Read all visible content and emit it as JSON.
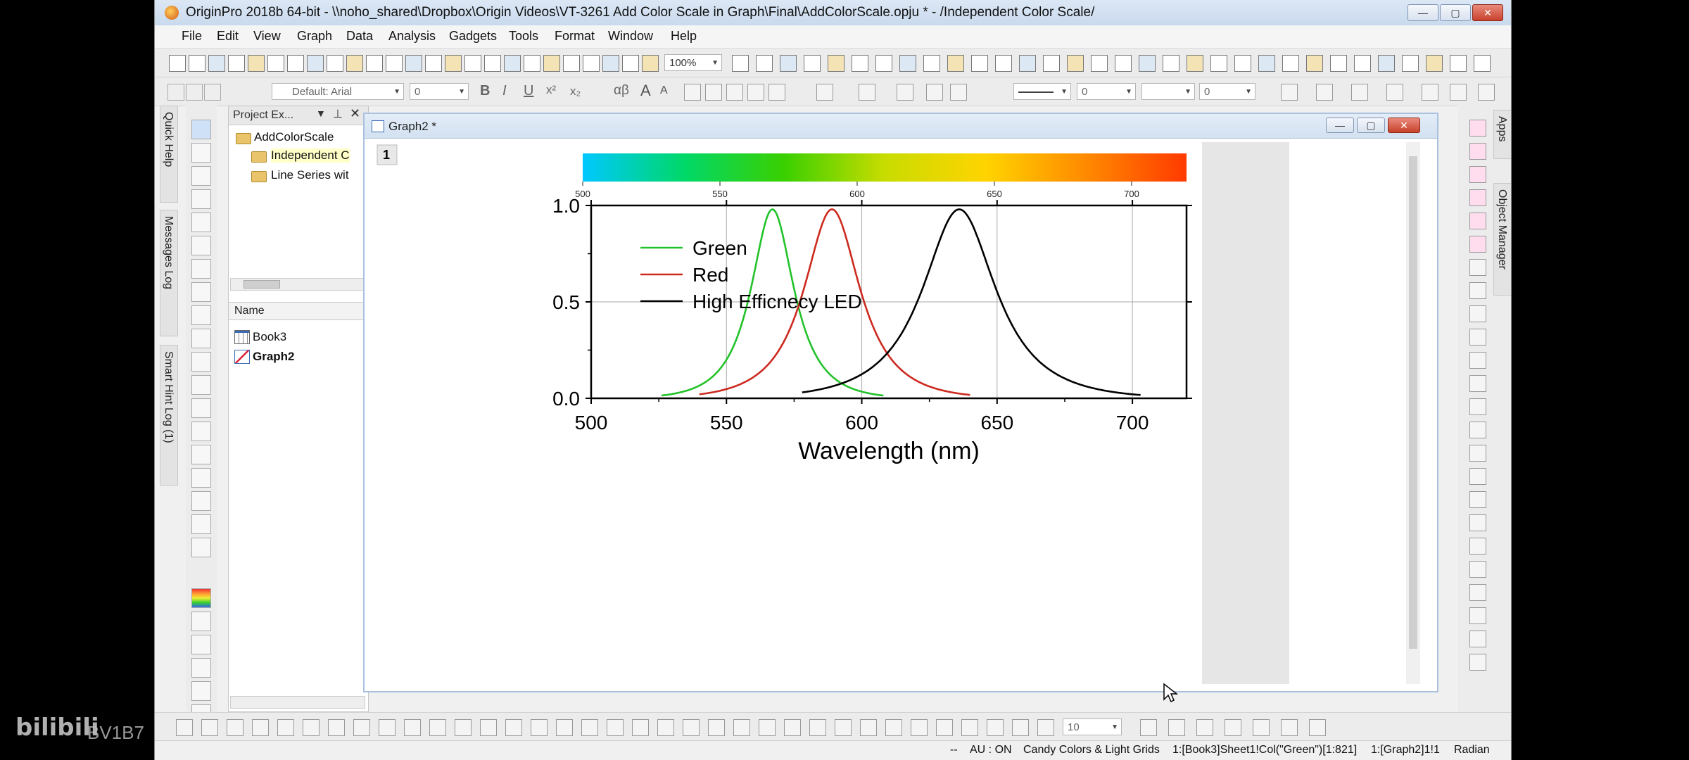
{
  "window": {
    "title": "OriginPro 2018b 64-bit - \\\\noho_shared\\Dropbox\\Origin Videos\\VT-3261 Add Color Scale in Graph\\Final\\AddColorScale.opju * - /Independent Color Scale/",
    "minimize_icon": "minimize-icon",
    "maximize_icon": "maximize-icon",
    "close_icon": "close-icon"
  },
  "menu": [
    "File",
    "Edit",
    "View",
    "Graph",
    "Data",
    "Analysis",
    "Gadgets",
    "Tools",
    "Format",
    "Window",
    "Help"
  ],
  "toolbar": {
    "zoom": "100%",
    "font": "Default: Arial",
    "font_size": "0",
    "line_width": "0",
    "line_width2": "0",
    "bold": "B",
    "italic": "I",
    "underline": "U",
    "superscript": "x²",
    "subscript": "x₂",
    "greek": "αβ",
    "font_grow": "A",
    "font_shrink": "A",
    "bottom_font_size": "10"
  },
  "left_dock": {
    "tabs": [
      "Quick Help",
      "Messages Log",
      "Smart Hint Log (1)"
    ]
  },
  "project_explorer": {
    "title": "Project Ex...",
    "root": "AddColorScale",
    "folders": [
      "Independent C",
      "Line Series wit"
    ],
    "column_header": "Name",
    "items": [
      {
        "name": "Book3",
        "bold": false,
        "icon": "workbook-icon"
      },
      {
        "name": "Graph2",
        "bold": true,
        "icon": "graph-icon"
      }
    ]
  },
  "graph_window": {
    "title": "Graph2 *",
    "layer_label": "1"
  },
  "right_dock": {
    "tabs": [
      "Apps",
      "Object Manager"
    ]
  },
  "status_bar": {
    "separator": "--",
    "au": "AU : ON",
    "theme": "Candy Colors & Light Grids",
    "column": "1:[Book3]Sheet1!Col(\"Green\")[1:821]",
    "layer": "1:[Graph2]1!1",
    "unit": "Radian"
  },
  "watermark": {
    "logo": "bilibili",
    "id": "BV1B7"
  },
  "chart_data": {
    "type": "line",
    "xlabel": "Wavelength (nm)",
    "ylabel": "",
    "xlim": [
      500,
      720
    ],
    "ylim": [
      0,
      1
    ],
    "x_ticks": [
      "500",
      "550",
      "600",
      "650",
      "700"
    ],
    "y_ticks": [
      "0.0",
      "0.5",
      "1.0"
    ],
    "grid": true,
    "legend_position": "top-left",
    "series": [
      {
        "name": "Green",
        "color": "#22c22a",
        "x_range": [
          526,
          608
        ],
        "peak_x": 567,
        "peak_y": 0.98,
        "width": 10
      },
      {
        "name": "Red",
        "color": "#cc2a1e",
        "x_range": [
          540,
          640
        ],
        "peak_x": 589,
        "peak_y": 0.98,
        "width": 13
      },
      {
        "name": "High Efficnecy LED",
        "color": "#000000",
        "x_range": [
          578,
          703
        ],
        "peak_x": 636,
        "peak_y": 0.98,
        "width": 17
      }
    ],
    "color_scale": {
      "range": [
        500,
        720
      ],
      "ticks": [
        "500",
        "550",
        "600",
        "650",
        "700"
      ],
      "stops": [
        "#00c8ff",
        "#00d86a",
        "#3ad000",
        "#c8dc00",
        "#ffd400",
        "#ff8a00",
        "#ff3a00"
      ]
    }
  }
}
